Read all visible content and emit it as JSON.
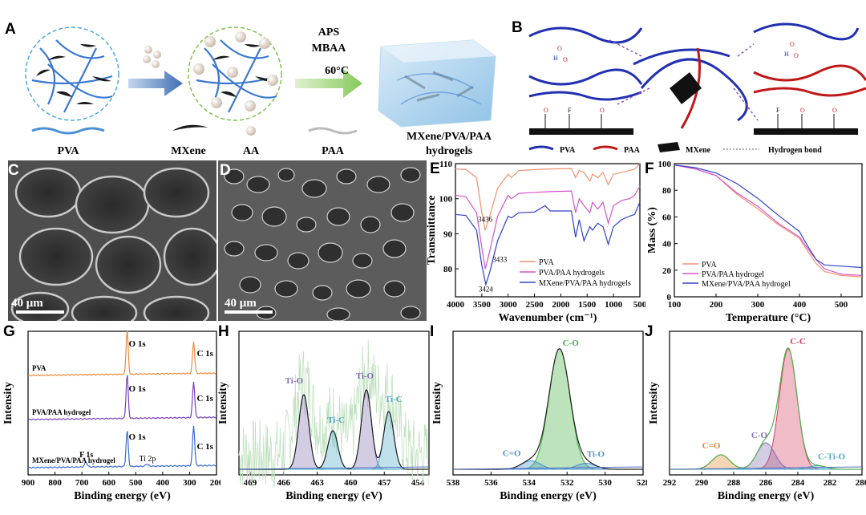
{
  "panels": {
    "A": {
      "letter": "A",
      "conditions": [
        "APS",
        "MBAA",
        "60°C"
      ],
      "legend": [
        "PVA",
        "MXene",
        "AA",
        "PAA"
      ],
      "product": [
        "MXene/PVA/PAA",
        "hydrogels"
      ]
    },
    "B": {
      "letter": "B",
      "legend": [
        "PVA",
        "PAA",
        "MXene",
        "Hydrogen bond"
      ],
      "atoms": [
        "O",
        "H",
        "F"
      ]
    },
    "C": {
      "letter": "C",
      "scalebar": "40 μm"
    },
    "D": {
      "letter": "D",
      "scalebar": "40 μm"
    },
    "E": {
      "letter": "E"
    },
    "F": {
      "letter": "F"
    },
    "G": {
      "letter": "G"
    },
    "H": {
      "letter": "H"
    },
    "I": {
      "letter": "I"
    },
    "J": {
      "letter": "J"
    }
  },
  "chart_data": [
    {
      "id": "E",
      "type": "line",
      "xlabel": "Wavenumber (cm⁻¹)",
      "ylabel": "Transmittance",
      "xlim": [
        4000,
        500
      ],
      "ylim": [
        72,
        110
      ],
      "xticks": [
        4000,
        3500,
        3000,
        2500,
        2000,
        1500,
        1000,
        500
      ],
      "yticks": [
        80,
        90,
        100,
        110
      ],
      "series": [
        {
          "name": "PVA",
          "color": "#f29070",
          "x": [
            4000,
            3800,
            3600,
            3500,
            3436,
            3350,
            3200,
            3000,
            2940,
            2800,
            2500,
            2200,
            1800,
            1720,
            1650,
            1560,
            1450,
            1400,
            1300,
            1200,
            1100,
            1000,
            850,
            700,
            600,
            500
          ],
          "y": [
            108.5,
            108.3,
            106,
            96,
            91,
            95,
            103,
            107,
            106,
            108,
            108.3,
            108.5,
            108.6,
            106,
            108,
            107.5,
            105,
            107,
            106,
            107.5,
            104,
            107,
            107.5,
            108,
            108.4,
            110
          ]
        },
        {
          "name": "PVA/PAA hydrogels",
          "color": "#d455c8",
          "x": [
            4000,
            3800,
            3600,
            3500,
            3433,
            3350,
            3200,
            3000,
            2940,
            2800,
            2500,
            2200,
            1800,
            1720,
            1650,
            1560,
            1450,
            1400,
            1300,
            1200,
            1100,
            1000,
            850,
            700,
            600,
            500
          ],
          "y": [
            101,
            100.5,
            96,
            86,
            80,
            85,
            95,
            101,
            100,
            101.5,
            101.8,
            102,
            102.2,
            96,
            100,
            98,
            96,
            99,
            97,
            99,
            93,
            98,
            99.5,
            100,
            101,
            103.5
          ]
        },
        {
          "name": "MXene/PVA/PAA hydrogels",
          "color": "#3040c8",
          "x": [
            4000,
            3800,
            3600,
            3500,
            3424,
            3350,
            3200,
            3000,
            2940,
            2800,
            2500,
            2300,
            2200,
            1800,
            1720,
            1650,
            1560,
            1450,
            1400,
            1300,
            1200,
            1100,
            1000,
            850,
            700,
            600,
            500
          ],
          "y": [
            95.5,
            95.2,
            91,
            81,
            75.5,
            79,
            88,
            95,
            94.5,
            96,
            96.2,
            98,
            96.5,
            96.5,
            89,
            94,
            88,
            92,
            91,
            93,
            92,
            87,
            92,
            94,
            95,
            95.5,
            99
          ]
        }
      ],
      "annotations": [
        "3436",
        "3433",
        "3424"
      ]
    },
    {
      "id": "F",
      "type": "line",
      "xlabel": "Temperature (°C)",
      "ylabel": "Mass (%)",
      "xlim": [
        100,
        550
      ],
      "ylim": [
        0,
        100
      ],
      "xticks": [
        100,
        200,
        300,
        400,
        500
      ],
      "yticks": [
        0,
        20,
        40,
        60,
        80,
        100
      ],
      "series": [
        {
          "name": "PVA",
          "color": "#f29070",
          "x": [
            100,
            150,
            200,
            250,
            300,
            350,
            400,
            420,
            440,
            460,
            500,
            550
          ],
          "y": [
            99,
            96,
            91,
            77,
            66,
            54,
            44,
            34,
            25,
            19,
            16,
            15
          ]
        },
        {
          "name": "PVA/PAA hydrogel",
          "color": "#d455c8",
          "x": [
            100,
            150,
            200,
            250,
            300,
            350,
            400,
            420,
            440,
            460,
            500,
            550
          ],
          "y": [
            99,
            96,
            91,
            78,
            68,
            55,
            45,
            36,
            28,
            21,
            17,
            16
          ]
        },
        {
          "name": "MXene/PVA/PAA hydrogel",
          "color": "#3040c8",
          "x": [
            100,
            150,
            200,
            250,
            300,
            350,
            400,
            420,
            440,
            460,
            500,
            550
          ],
          "y": [
            99,
            97,
            93,
            85,
            74,
            61,
            49,
            38,
            28,
            24,
            23,
            22
          ]
        }
      ]
    },
    {
      "id": "G",
      "type": "line",
      "xlabel": "Binding energy (eV)",
      "ylabel": "Intensity",
      "xlim": [
        900,
        200
      ],
      "xticks": [
        900,
        800,
        700,
        600,
        500,
        400,
        300,
        200
      ],
      "series": [
        {
          "name": "PVA",
          "color": "#f08a3a"
        },
        {
          "name": "PVA/PAA hydrogel",
          "color": "#7a40c0"
        },
        {
          "name": "MXene/PVA/PAA hydrogel",
          "color": "#3a6ad0"
        }
      ],
      "peaks": [
        {
          "label": "O 1s",
          "x": 532
        },
        {
          "label": "C 1s",
          "x": 285
        },
        {
          "label": "F 1s",
          "x": 685
        },
        {
          "label": "Ti 2p",
          "x": 458
        }
      ]
    },
    {
      "id": "H",
      "type": "line",
      "xlabel": "Binding energy (eV)",
      "ylabel": "Intensity",
      "xlim": [
        470,
        453
      ],
      "xticks": [
        469,
        466,
        463,
        460,
        457,
        454
      ],
      "peaks": [
        {
          "label": "Ti-O",
          "x": 464.2,
          "height": 0.62,
          "color": "#8070b0"
        },
        {
          "label": "Ti-C",
          "x": 461.6,
          "height": 0.32,
          "color": "#4aa8c8"
        },
        {
          "label": "Ti-O",
          "x": 458.6,
          "height": 0.66,
          "color": "#8070b0"
        },
        {
          "label": "Ti-C",
          "x": 456.6,
          "height": 0.48,
          "color": "#4aa8c8"
        }
      ]
    },
    {
      "id": "I",
      "type": "line",
      "xlabel": "Binding energy (eV)",
      "ylabel": "Intensity",
      "xlim": [
        538,
        528
      ],
      "xticks": [
        538,
        536,
        534,
        532,
        530,
        528
      ],
      "peaks": [
        {
          "label": "C-O",
          "x": 532.4,
          "height": 1.0,
          "color": "#40b040"
        },
        {
          "label": "C=O",
          "x": 533.9,
          "height": 0.07,
          "color": "#4a90d0"
        },
        {
          "label": "Ti-O",
          "x": 531.0,
          "height": 0.05,
          "color": "#4a90d0"
        }
      ]
    },
    {
      "id": "J",
      "type": "line",
      "xlabel": "Binding energy (eV)",
      "ylabel": "Intensity",
      "xlim": [
        292,
        280
      ],
      "xticks": [
        292,
        290,
        288,
        286,
        284,
        282,
        280
      ],
      "peaks": [
        {
          "label": "C-C",
          "x": 284.6,
          "height": 1.0,
          "color": "#d04060"
        },
        {
          "label": "C-O",
          "x": 286.0,
          "height": 0.22,
          "color": "#8070b0"
        },
        {
          "label": "C=O",
          "x": 288.8,
          "height": 0.12,
          "color": "#e08a30"
        },
        {
          "label": "C-Ti-O",
          "x": 282.8,
          "height": 0.03,
          "color": "#4aa8c8"
        }
      ]
    }
  ]
}
